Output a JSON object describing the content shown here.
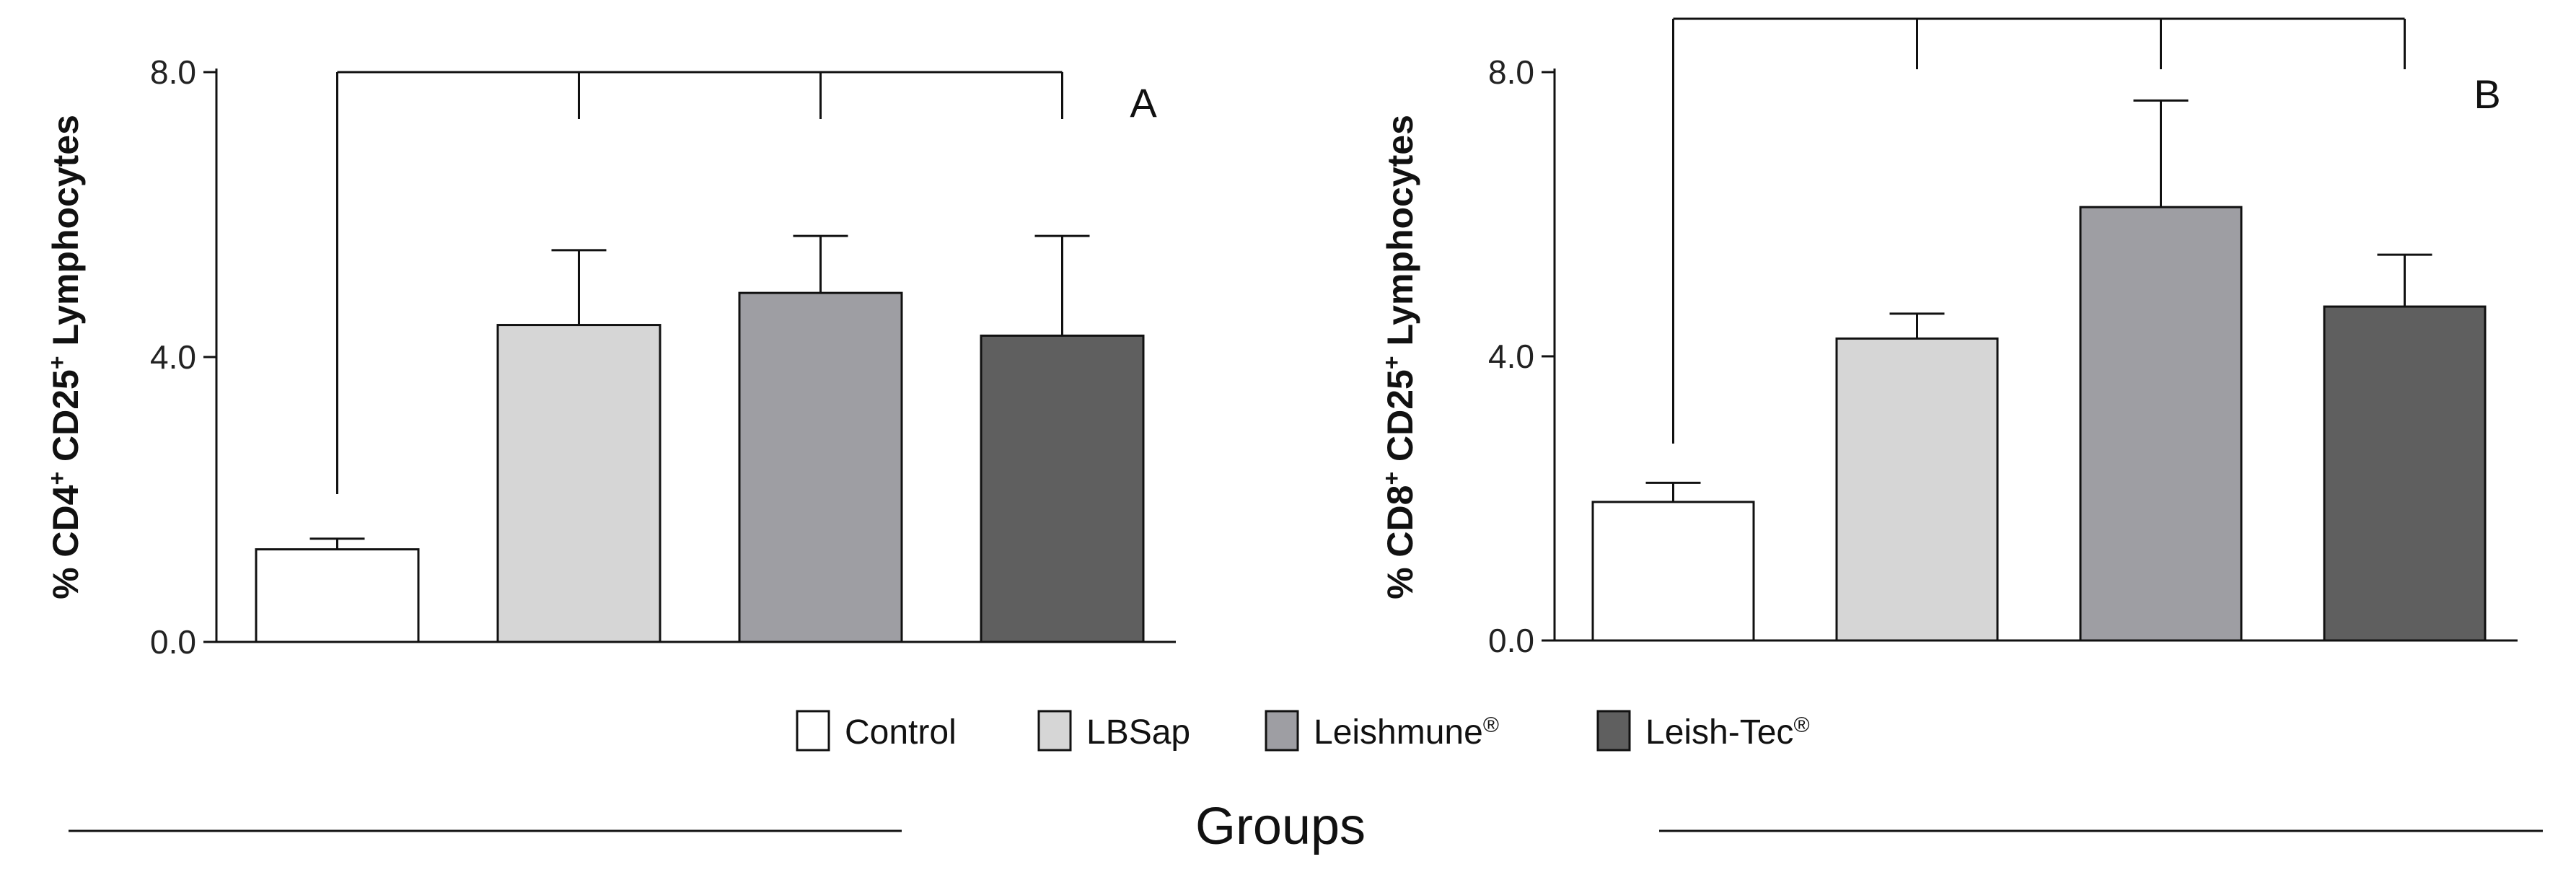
{
  "chart_data": [
    {
      "type": "bar",
      "panel": "A",
      "ylabel": {
        "prefix": "% CD4",
        "mid": " CD25",
        "suffix": " Lymphocytes",
        "sup1": "+",
        "sup2": "+"
      },
      "ylim": [
        0,
        8
      ],
      "yticks": [
        0,
        4,
        8
      ],
      "ytick_labels": [
        "0.0",
        "4.0",
        "8.0"
      ],
      "categories": [
        "Control",
        "LBSap",
        "Leishmune®",
        "Leish-Tec®"
      ],
      "values": [
        1.3,
        4.45,
        4.9,
        4.3
      ],
      "errors": [
        0.15,
        1.05,
        0.8,
        1.4
      ],
      "colors": [
        "#ffffff",
        "#d6d6d6",
        "#9e9ea3",
        "#5f5f5f"
      ],
      "significance": [
        {
          "from": 0,
          "to": [
            1,
            2,
            3
          ],
          "label": ""
        }
      ]
    },
    {
      "type": "bar",
      "panel": "B",
      "ylabel": {
        "prefix": "% CD8",
        "mid": " CD25",
        "suffix": " Lymphocytes",
        "sup1": "+",
        "sup2": "+"
      },
      "ylim": [
        0,
        8
      ],
      "yticks": [
        0,
        4,
        8
      ],
      "ytick_labels": [
        "0.0",
        "4.0",
        "8.0"
      ],
      "categories": [
        "Control",
        "LBSap",
        "Leishmune®",
        "Leish-Tec®"
      ],
      "values": [
        1.95,
        4.25,
        6.1,
        4.7
      ],
      "errors": [
        0.27,
        0.35,
        1.5,
        0.73
      ],
      "colors": [
        "#ffffff",
        "#d6d6d6",
        "#9e9ea3",
        "#5f5f5f"
      ],
      "significance": [
        {
          "from": 0,
          "to": [
            1,
            2,
            3
          ],
          "label": ""
        }
      ]
    }
  ],
  "legend": {
    "items": [
      {
        "name": "Control",
        "base": "Control",
        "sup": "",
        "color": "#ffffff"
      },
      {
        "name": "LBSap",
        "base": "LBSap",
        "sup": "",
        "color": "#d6d6d6"
      },
      {
        "name": "Leishmune®",
        "base": "Leishmune",
        "sup": "®",
        "color": "#9e9ea3"
      },
      {
        "name": "Leish-Tec®",
        "base": "Leish-Tec",
        "sup": "®",
        "color": "#5f5f5f"
      }
    ]
  },
  "xlabel": "Groups"
}
